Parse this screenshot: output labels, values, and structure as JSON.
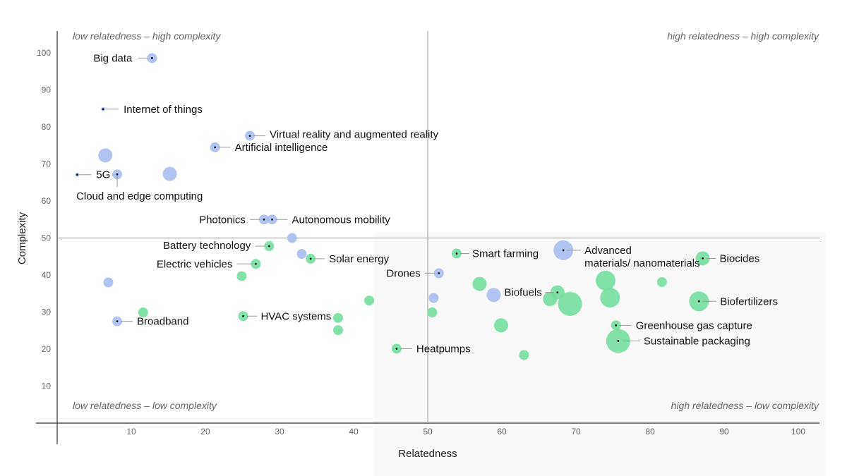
{
  "chart_data": {
    "type": "scatter",
    "xlabel": "Relatedness",
    "ylabel": "Complexity",
    "xlim": [
      0,
      103
    ],
    "ylim": [
      0,
      105
    ],
    "x_ticks": [
      10,
      20,
      30,
      40,
      50,
      60,
      70,
      80,
      90,
      100
    ],
    "y_ticks": [
      10,
      20,
      30,
      40,
      50,
      60,
      70,
      80,
      90,
      100
    ],
    "quadrant_dividers": {
      "x": 50,
      "y": 50
    },
    "grid": false,
    "colors": {
      "digital": "#a8bdf2",
      "green": "#74dea0"
    },
    "quadrant_labels": {
      "top_left": "low relatedness – high complexity",
      "top_right": "high relatedness – high complexity",
      "bottom_left": "low relatedness – low complexity",
      "bottom_right": "high relatedness – low complexity"
    },
    "points": [
      {
        "label": "Big data",
        "x": 12.8,
        "y": 98.6,
        "size": 7,
        "group": "digital"
      },
      {
        "label": "Internet of things",
        "x": 6.2,
        "y": 84.8,
        "size": 3,
        "group": "digital"
      },
      {
        "label": "Virtual reality and augmented reality",
        "x": 26.0,
        "y": 77.6,
        "size": 7,
        "group": "digital"
      },
      {
        "label": "Artificial intelligence",
        "x": 21.3,
        "y": 74.5,
        "size": 7,
        "group": "digital"
      },
      {
        "label": "",
        "x": 6.5,
        "y": 72.3,
        "size": 10,
        "group": "digital"
      },
      {
        "label": "5G",
        "x": 2.7,
        "y": 67.1,
        "size": 3,
        "group": "digital"
      },
      {
        "label": "Cloud and edge computing",
        "x": 8.1,
        "y": 67.2,
        "size": 7,
        "group": "digital"
      },
      {
        "label": "",
        "x": 15.2,
        "y": 67.3,
        "size": 10,
        "group": "digital"
      },
      {
        "label": "Photonics",
        "x": 27.9,
        "y": 55.0,
        "size": 7,
        "group": "digital"
      },
      {
        "label": "Autonomous mobility",
        "x": 29.0,
        "y": 55.0,
        "size": 7,
        "group": "digital"
      },
      {
        "label": "",
        "x": 31.7,
        "y": 50.0,
        "size": 7,
        "group": "digital"
      },
      {
        "label": "",
        "x": 33.0,
        "y": 45.7,
        "size": 7,
        "group": "digital"
      },
      {
        "label": "",
        "x": 6.9,
        "y": 38.0,
        "size": 7,
        "group": "digital"
      },
      {
        "label": "Broadband",
        "x": 8.1,
        "y": 27.5,
        "size": 7,
        "group": "digital"
      },
      {
        "label": "Drones",
        "x": 51.5,
        "y": 40.5,
        "size": 7,
        "group": "digital"
      },
      {
        "label": "",
        "x": 50.8,
        "y": 33.8,
        "size": 7,
        "group": "digital"
      },
      {
        "label": "",
        "x": 58.9,
        "y": 34.6,
        "size": 10,
        "group": "digital"
      },
      {
        "label": "Advanced materials/ nanomaterials",
        "x": 68.3,
        "y": 46.7,
        "size": 14,
        "group": "digital"
      },
      {
        "label": "Battery technology",
        "x": 28.6,
        "y": 47.8,
        "size": 7,
        "group": "green"
      },
      {
        "label": "Electric vehicles",
        "x": 26.8,
        "y": 43.0,
        "size": 7,
        "group": "green"
      },
      {
        "label": "",
        "x": 24.9,
        "y": 39.7,
        "size": 7,
        "group": "green"
      },
      {
        "label": "Solar energy",
        "x": 34.2,
        "y": 44.4,
        "size": 7,
        "group": "green"
      },
      {
        "label": "HVAC systems",
        "x": 25.1,
        "y": 28.9,
        "size": 7,
        "group": "green"
      },
      {
        "label": "",
        "x": 11.6,
        "y": 29.9,
        "size": 7,
        "group": "green"
      },
      {
        "label": "",
        "x": 37.9,
        "y": 28.4,
        "size": 7,
        "group": "green"
      },
      {
        "label": "",
        "x": 37.9,
        "y": 25.1,
        "size": 7,
        "group": "green"
      },
      {
        "label": "",
        "x": 42.1,
        "y": 33.1,
        "size": 7,
        "group": "green"
      },
      {
        "label": "Heatpumps",
        "x": 45.8,
        "y": 20.1,
        "size": 7,
        "group": "green"
      },
      {
        "label": "",
        "x": 50.6,
        "y": 29.9,
        "size": 7,
        "group": "green"
      },
      {
        "label": "Smart farming",
        "x": 53.9,
        "y": 45.8,
        "size": 7,
        "group": "green"
      },
      {
        "label": "",
        "x": 57.0,
        "y": 37.6,
        "size": 10,
        "group": "green"
      },
      {
        "label": "",
        "x": 59.9,
        "y": 26.4,
        "size": 10,
        "group": "green"
      },
      {
        "label": "",
        "x": 63.0,
        "y": 18.4,
        "size": 7,
        "group": "green"
      },
      {
        "label": "",
        "x": 66.5,
        "y": 33.5,
        "size": 10,
        "group": "green"
      },
      {
        "label": "Biofuels",
        "x": 67.5,
        "y": 35.3,
        "size": 10,
        "group": "green"
      },
      {
        "label": "",
        "x": 69.2,
        "y": 32.2,
        "size": 17,
        "group": "green"
      },
      {
        "label": "",
        "x": 74.0,
        "y": 38.5,
        "size": 14,
        "group": "green"
      },
      {
        "label": "",
        "x": 74.6,
        "y": 33.9,
        "size": 14,
        "group": "green"
      },
      {
        "label": "Greenhouse gas capture",
        "x": 75.4,
        "y": 26.4,
        "size": 7,
        "group": "green"
      },
      {
        "label": "Sustainable packaging",
        "x": 75.7,
        "y": 22.2,
        "size": 17,
        "group": "green"
      },
      {
        "label": "",
        "x": 81.6,
        "y": 38.1,
        "size": 7,
        "group": "green"
      },
      {
        "label": "Biofertilizers",
        "x": 86.6,
        "y": 32.9,
        "size": 14,
        "group": "green"
      },
      {
        "label": "Biocides",
        "x": 87.1,
        "y": 44.5,
        "size": 10,
        "group": "green"
      }
    ]
  }
}
